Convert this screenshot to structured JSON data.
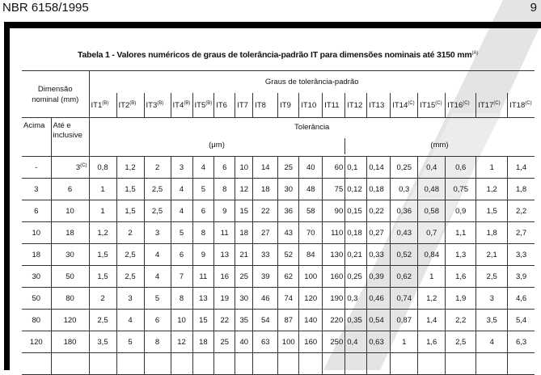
{
  "header": {
    "doc_id": "NBR 6158/1995",
    "page_number": "9"
  },
  "table": {
    "title": "Tabela 1 - Valores numéricos de graus de tolerância-padrão IT para dimensões nominais até 3150 mm",
    "title_sup": "(A)",
    "dim_header": "Dimensão nominal (mm)",
    "grades_header": "Graus de tolerância-padrão",
    "grades": [
      {
        "label": "IT1",
        "sup": "(B)"
      },
      {
        "label": "IT2",
        "sup": "(B)"
      },
      {
        "label": "IT3",
        "sup": "(B)"
      },
      {
        "label": "IT4",
        "sup": "(B)"
      },
      {
        "label": "IT5",
        "sup": "(B)"
      },
      {
        "label": "IT6",
        "sup": ""
      },
      {
        "label": "IT7",
        "sup": ""
      },
      {
        "label": "IT8",
        "sup": ""
      },
      {
        "label": "IT9",
        "sup": ""
      },
      {
        "label": "IT10",
        "sup": ""
      },
      {
        "label": "IT11",
        "sup": ""
      },
      {
        "label": "IT12",
        "sup": ""
      },
      {
        "label": "IT13",
        "sup": ""
      },
      {
        "label": "IT14",
        "sup": "(C)"
      },
      {
        "label": "IT15",
        "sup": "(C)"
      },
      {
        "label": "IT16",
        "sup": "(C)"
      },
      {
        "label": "IT17",
        "sup": "(C)"
      },
      {
        "label": "IT18",
        "sup": "(C)"
      }
    ],
    "col_above": "Acima",
    "col_upto": "Até e inclusive",
    "tolerance_label": "Tolerância",
    "unit_um": "(μm)",
    "unit_mm": "(mm)",
    "rows": [
      {
        "above": "-",
        "upto": "3",
        "upto_sup": "(C)",
        "values": [
          "0,8",
          "1,2",
          "2",
          "3",
          "4",
          "6",
          "10",
          "14",
          "25",
          "40",
          "60",
          "0,1",
          "0,14",
          "0,25",
          "0,4",
          "0,6",
          "1",
          "1,4"
        ]
      },
      {
        "above": "3",
        "upto": "6",
        "upto_sup": "",
        "values": [
          "1",
          "1,5",
          "2,5",
          "4",
          "5",
          "8",
          "12",
          "18",
          "30",
          "48",
          "75",
          "0,12",
          "0,18",
          "0,3",
          "0,48",
          "0,75",
          "1,2",
          "1,8"
        ]
      },
      {
        "above": "6",
        "upto": "10",
        "upto_sup": "",
        "values": [
          "1",
          "1,5",
          "2,5",
          "4",
          "6",
          "9",
          "15",
          "22",
          "36",
          "58",
          "90",
          "0,15",
          "0,22",
          "0,36",
          "0,58",
          "0,9",
          "1,5",
          "2,2"
        ]
      },
      {
        "above": "10",
        "upto": "18",
        "upto_sup": "",
        "values": [
          "1,2",
          "2",
          "3",
          "5",
          "8",
          "11",
          "18",
          "27",
          "43",
          "70",
          "110",
          "0,18",
          "0,27",
          "0,43",
          "0,7",
          "1,1",
          "1,8",
          "2,7"
        ]
      },
      {
        "above": "18",
        "upto": "30",
        "upto_sup": "",
        "values": [
          "1,5",
          "2,5",
          "4",
          "6",
          "9",
          "13",
          "21",
          "33",
          "52",
          "84",
          "130",
          "0,21",
          "0,33",
          "0,52",
          "0,84",
          "1,3",
          "2,1",
          "3,3"
        ]
      },
      {
        "above": "30",
        "upto": "50",
        "upto_sup": "",
        "values": [
          "1,5",
          "2,5",
          "4",
          "7",
          "11",
          "16",
          "25",
          "39",
          "62",
          "100",
          "160",
          "0,25",
          "0,39",
          "0,62",
          "1",
          "1,6",
          "2,5",
          "3,9"
        ]
      },
      {
        "above": "50",
        "upto": "80",
        "upto_sup": "",
        "values": [
          "2",
          "3",
          "5",
          "8",
          "13",
          "19",
          "30",
          "46",
          "74",
          "120",
          "190",
          "0,3",
          "0,46",
          "0,74",
          "1,2",
          "1,9",
          "3",
          "4,6"
        ]
      },
      {
        "above": "80",
        "upto": "120",
        "upto_sup": "",
        "values": [
          "2,5",
          "4",
          "6",
          "10",
          "15",
          "22",
          "35",
          "54",
          "87",
          "140",
          "220",
          "0,35",
          "0,54",
          "0,87",
          "1,4",
          "2,2",
          "3,5",
          "5,4"
        ]
      },
      {
        "above": "120",
        "upto": "180",
        "upto_sup": "",
        "values": [
          "3,5",
          "5",
          "8",
          "12",
          "18",
          "25",
          "40",
          "63",
          "100",
          "160",
          "250",
          "0,4",
          "0,63",
          "1",
          "1,6",
          "2,5",
          "4",
          "6,3"
        ]
      }
    ]
  }
}
